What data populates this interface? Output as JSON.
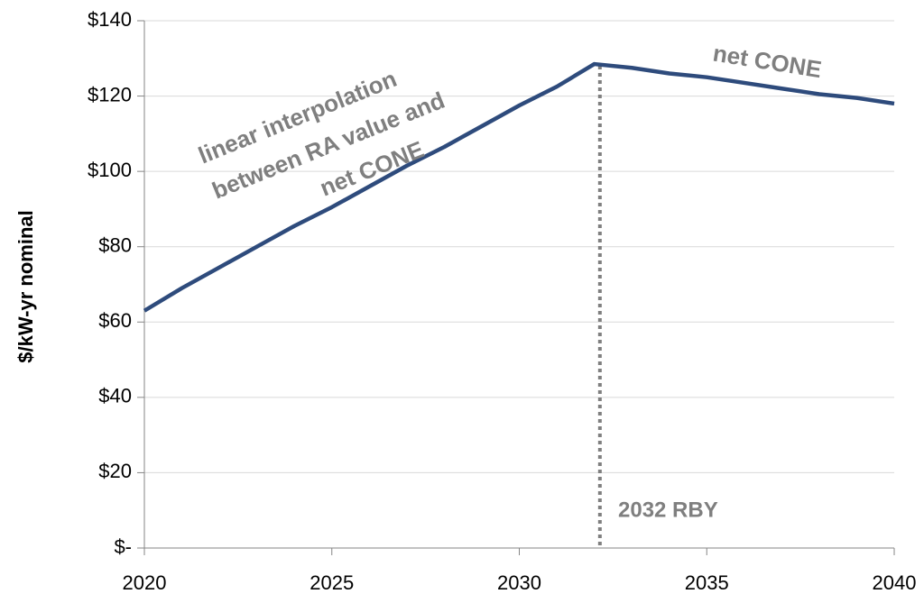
{
  "chart_data": {
    "type": "line",
    "y_axis_label": "$/kW-yr nominal",
    "x": [
      2020,
      2021,
      2022,
      2023,
      2024,
      2025,
      2026,
      2027,
      2028,
      2029,
      2030,
      2031,
      2032,
      2033,
      2034,
      2035,
      2036,
      2037,
      2038,
      2039,
      2040
    ],
    "series": [
      {
        "name": null,
        "color": "#2e4b7c",
        "values": [
          63,
          69,
          74.5,
          80,
          85.5,
          90.5,
          96,
          101.5,
          106.5,
          112,
          117.5,
          122.5,
          128.5,
          127.5,
          126,
          125,
          123.5,
          122,
          120.5,
          119.5,
          118
        ]
      }
    ],
    "xlim": [
      2020,
      2040
    ],
    "xticks": [
      2020,
      2025,
      2030,
      2035,
      2040
    ],
    "ylim": [
      0,
      140
    ],
    "yticks": [
      {
        "value": 0,
        "label": "$-"
      },
      {
        "value": 20,
        "label": "$20"
      },
      {
        "value": 40,
        "label": "$40"
      },
      {
        "value": 60,
        "label": "$60"
      },
      {
        "value": 80,
        "label": "$80"
      },
      {
        "value": 100,
        "label": "$100"
      },
      {
        "value": 120,
        "label": "$120"
      },
      {
        "value": 140,
        "label": "$140"
      }
    ],
    "grid": true,
    "vline": {
      "x": 2032.15,
      "color": "#7f7f7f",
      "label": "2032 RBY"
    },
    "annotations": [
      "linear interpolation",
      "between RA value and",
      "net CONE",
      "net CONE"
    ]
  }
}
